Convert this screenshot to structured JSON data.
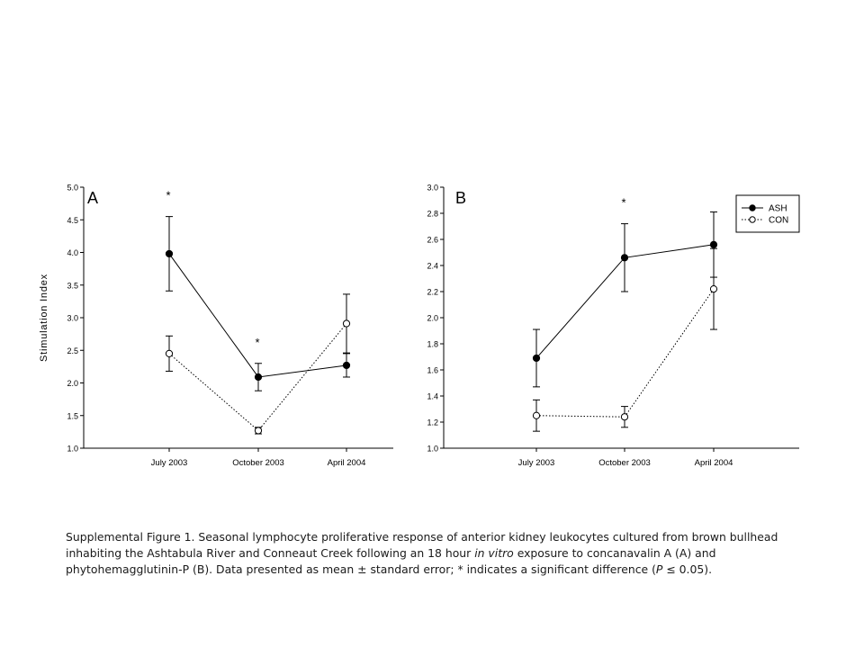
{
  "chart_data": [
    {
      "type": "line",
      "panel_label": "A",
      "ylabel": "Stimulation Index",
      "xlabel": "",
      "categories": [
        "July 2003",
        "October 2003",
        "April 2004"
      ],
      "ylim": [
        1.0,
        5.0
      ],
      "yticks": [
        "1.0",
        "1.5",
        "2.0",
        "2.5",
        "3.0",
        "3.5",
        "4.0",
        "4.5",
        "5.0"
      ],
      "series": [
        {
          "name": "ASH",
          "marker": "filled-circle",
          "line": "solid",
          "values": [
            3.98,
            2.09,
            2.27
          ],
          "errors": [
            0.57,
            0.21,
            0.18
          ]
        },
        {
          "name": "CON",
          "marker": "open-circle",
          "line": "dotted",
          "values": [
            2.45,
            1.27,
            2.91
          ],
          "errors": [
            0.27,
            0.05,
            0.45
          ]
        }
      ],
      "annotations": [
        {
          "text": "*",
          "category": "July 2003"
        },
        {
          "text": "*",
          "category": "October 2003"
        }
      ],
      "legend": false
    },
    {
      "type": "line",
      "panel_label": "B",
      "ylabel": "",
      "xlabel": "",
      "categories": [
        "July 2003",
        "October 2003",
        "April 2004"
      ],
      "ylim": [
        1.0,
        3.0
      ],
      "yticks": [
        "1.0",
        "1.2",
        "1.4",
        "1.6",
        "1.8",
        "2.0",
        "2.2",
        "2.4",
        "2.6",
        "2.8",
        "3.0"
      ],
      "series": [
        {
          "name": "ASH",
          "marker": "filled-circle",
          "line": "solid",
          "values": [
            1.69,
            2.46,
            2.56
          ],
          "errors": [
            0.22,
            0.26,
            0.25
          ]
        },
        {
          "name": "CON",
          "marker": "open-circle",
          "line": "dotted",
          "values": [
            1.25,
            1.24,
            2.22
          ],
          "errors": [
            0.12,
            0.08,
            0.31
          ]
        }
      ],
      "annotations": [
        {
          "text": "*",
          "category": "October 2003"
        }
      ],
      "legend": true,
      "legend_position": "top-right"
    }
  ],
  "caption": {
    "pre": "Supplemental Figure 1. Seasonal lymphocyte proliferative response of anterior kidney leukocytes cultured from brown bullhead inhabiting the Ashtabula River and Conneaut Creek following an 18 hour ",
    "italic1": "in vitro",
    "mid": " exposure to concanavalin A (A) and phytohemagglutinin-P (B). Data presented as mean ± standard error; * indicates a significant difference (",
    "italic2": "P",
    "post": " ≤ 0.05)."
  }
}
